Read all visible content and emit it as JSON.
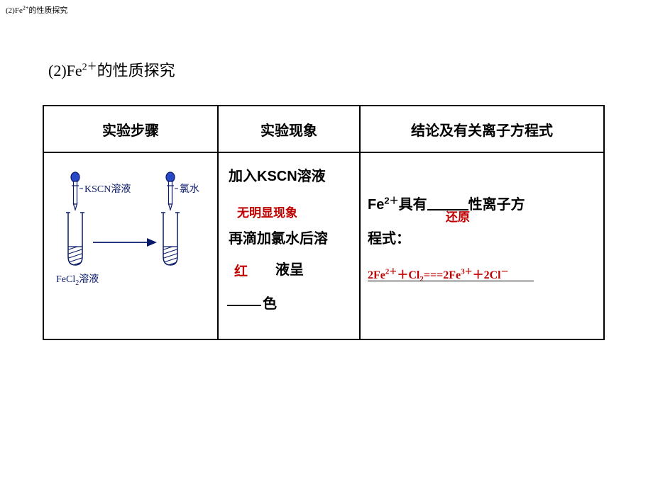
{
  "topCaption_html": "(2)Fe<sup>2+</sup>的性质探究",
  "sectionTitle_html": "(2)Fe<sup>2＋</sup>的性质探究",
  "table": {
    "headers": {
      "col1": "实验步骤",
      "col2": "实验现象",
      "col3": "结论及有关离子方程式"
    },
    "diagram": {
      "kscn_label": "KSCN溶液",
      "chlorine_label": "氯水",
      "fecl2_label": "FeCl",
      "fecl2_sub": "2",
      "fecl2_suffix": "溶液",
      "colors": {
        "outline": "#0a1a6b",
        "text": "#0a1a6b",
        "dropper_fill": "#2948c7",
        "liquid": "#ffffff",
        "hatch": "#0a1a6b"
      }
    },
    "phenomenon": {
      "line1": "加入KSCN溶液",
      "answer1": "无明显现象",
      "line3": "再滴加氯水后溶",
      "answer2": "红",
      "line4b": "液呈",
      "line5": "色"
    },
    "conclusion": {
      "prefix_html": "Fe<sup>2＋</sup>具有",
      "suffix": "性离子方",
      "answer": "还原",
      "line2": "程式：",
      "equation_html": "2Fe<sup>2＋</sup>＋Cl<sub>2</sub>===2Fe<sup>3＋</sup>＋2Cl<sup>－</sup>"
    }
  },
  "colors": {
    "answer_red": "#c00000",
    "text_black": "#000000",
    "border": "#000000"
  }
}
